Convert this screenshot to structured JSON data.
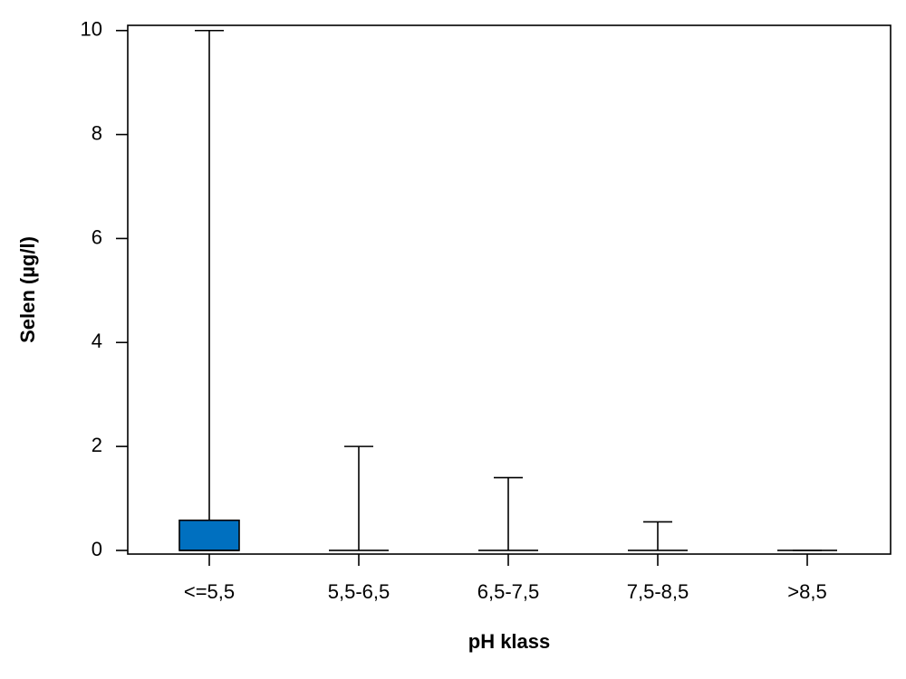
{
  "chart_data": {
    "type": "box",
    "y_label": "Selen (µg/l)",
    "x_label": "pH klass",
    "categories": [
      "<=5,5",
      "5,5-6,5",
      "6,5-7,5",
      "7,5-8,5",
      ">8,5"
    ],
    "boxes": [
      {
        "min": 0,
        "q1": 0,
        "median": 0,
        "q3": 0.58,
        "max": 10
      },
      {
        "min": 0,
        "q1": 0,
        "median": 0,
        "q3": 0,
        "max": 2
      },
      {
        "min": 0,
        "q1": 0,
        "median": 0,
        "q3": 0,
        "max": 1.4
      },
      {
        "min": 0,
        "q1": 0,
        "median": 0,
        "q3": 0,
        "max": 0.55
      },
      {
        "min": 0,
        "q1": 0,
        "median": 0,
        "q3": 0,
        "max": 0
      }
    ],
    "color": "#0070c0",
    "ylim": [
      -0.07,
      10.1
    ],
    "yticks": [
      0,
      2,
      4,
      6,
      8,
      10
    ],
    "grid": false
  }
}
